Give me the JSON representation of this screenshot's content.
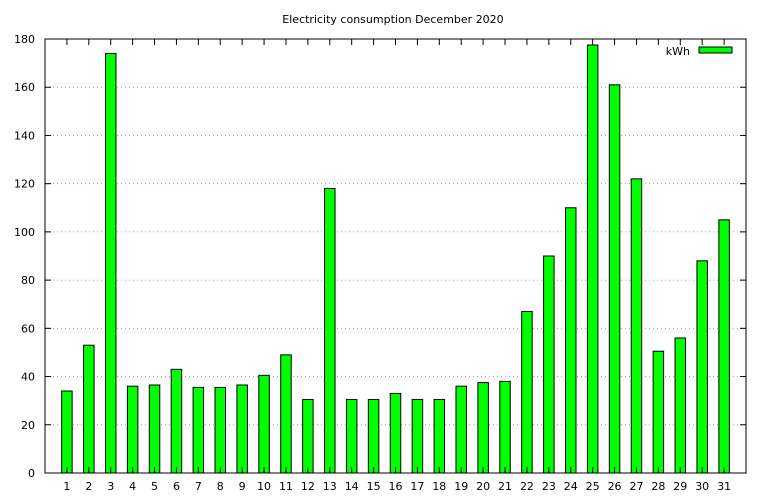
{
  "chart_data": {
    "type": "bar",
    "title": "Electricity consumption December 2020",
    "xlabel": "",
    "ylabel": "",
    "ylim": [
      0,
      180
    ],
    "yticks": [
      0,
      20,
      40,
      60,
      80,
      100,
      120,
      140,
      160,
      180
    ],
    "grid": "horizontal",
    "legend_position": "top-right",
    "categories": [
      "1",
      "2",
      "3",
      "4",
      "5",
      "6",
      "7",
      "8",
      "9",
      "10",
      "11",
      "12",
      "13",
      "14",
      "15",
      "16",
      "17",
      "18",
      "19",
      "20",
      "21",
      "22",
      "23",
      "24",
      "25",
      "26",
      "27",
      "28",
      "29",
      "30",
      "31"
    ],
    "series": [
      {
        "name": "kWh",
        "color": "#00ff00",
        "values": [
          34,
          53,
          174,
          36,
          36.5,
          43,
          35.5,
          35.5,
          36.5,
          40.5,
          49,
          30.5,
          118,
          30.5,
          30.5,
          33,
          30.5,
          30.5,
          36,
          37.5,
          38,
          67,
          90,
          110,
          177.5,
          161,
          122,
          50.5,
          56,
          88,
          105
        ]
      }
    ]
  }
}
